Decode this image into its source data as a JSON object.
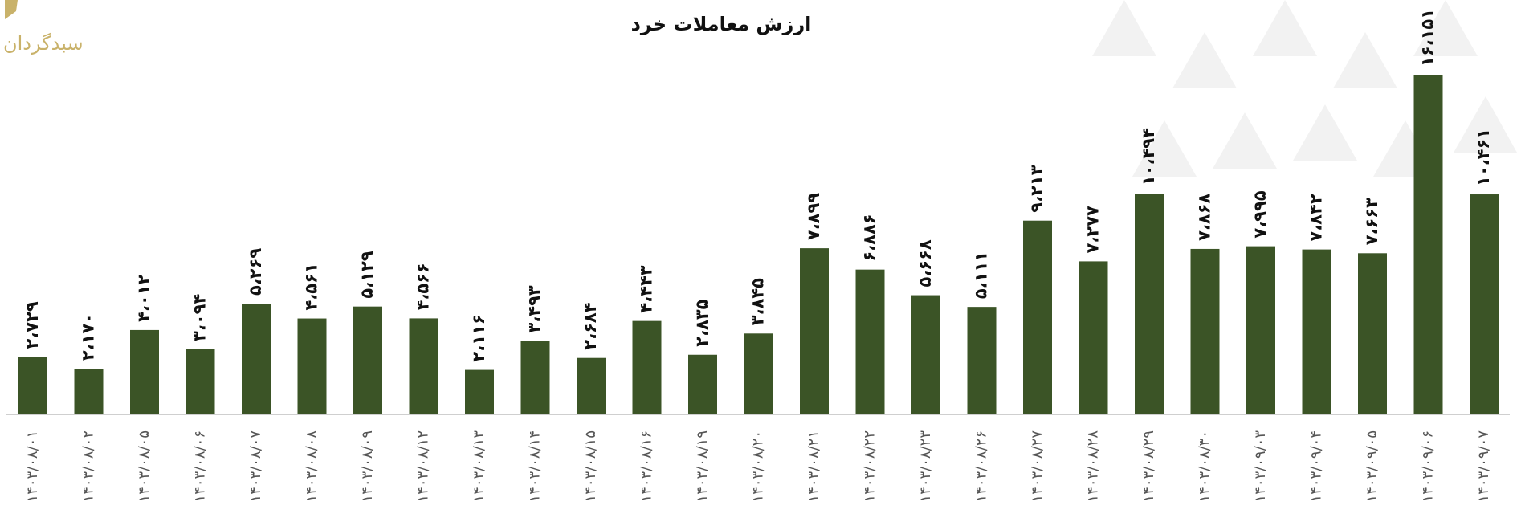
{
  "logo": {
    "text": "سبدگردان"
  },
  "chart_data": {
    "type": "bar",
    "title": "ارزش معاملات خرد",
    "color": "#3b5426",
    "categories": [
      "۱۴۰۳/۰۸/۰۱",
      "۱۴۰۳/۰۸/۰۲",
      "۱۴۰۳/۰۸/۰۵",
      "۱۴۰۳/۰۸/۰۶",
      "۱۴۰۳/۰۸/۰۷",
      "۱۴۰۳/۰۸/۰۸",
      "۱۴۰۳/۰۸/۰۹",
      "۱۴۰۳/۰۸/۱۲",
      "۱۴۰۳/۰۸/۱۳",
      "۱۴۰۳/۰۸/۱۴",
      "۱۴۰۳/۰۸/۱۵",
      "۱۴۰۳/۰۸/۱۶",
      "۱۴۰۳/۰۸/۱۹",
      "۱۴۰۳/۰۸/۲۰",
      "۱۴۰۳/۰۸/۲۱",
      "۱۴۰۳/۰۸/۲۲",
      "۱۴۰۳/۰۸/۲۳",
      "۱۴۰۳/۰۸/۲۶",
      "۱۴۰۳/۰۸/۲۷",
      "۱۴۰۳/۰۸/۲۸",
      "۱۴۰۳/۰۸/۲۹",
      "۱۴۰۳/۰۸/۳۰",
      "۱۴۰۳/۰۹/۰۳",
      "۱۴۰۳/۰۹/۰۴",
      "۱۴۰۳/۰۹/۰۵",
      "۱۴۰۳/۰۹/۰۶",
      "۱۴۰۳/۰۹/۰۷"
    ],
    "values": [
      2729,
      2170,
      4012,
      3094,
      5269,
      4561,
      5129,
      4566,
      2116,
      3493,
      2684,
      4443,
      2835,
      3845,
      7899,
      6886,
      5668,
      5111,
      9213,
      7277,
      10494,
      7868,
      7995,
      7842,
      7663,
      16151,
      10461
    ],
    "value_labels": [
      "۲،۷۲۹",
      "۲،۱۷۰",
      "۴،۰۱۲",
      "۳،۰۹۴",
      "۵،۲۶۹",
      "۴،۵۶۱",
      "۵،۱۲۹",
      "۴،۵۶۶",
      "۲،۱۱۶",
      "۳،۴۹۳",
      "۲،۶۸۴",
      "۴،۴۴۳",
      "۲،۸۳۵",
      "۳،۸۴۵",
      "۷،۸۹۹",
      "۶،۸۸۶",
      "۵،۶۶۸",
      "۵،۱۱۱",
      "۹،۲۱۳",
      "۷،۲۷۷",
      "۱۰،۴۹۴",
      "۷،۸۶۸",
      "۷،۹۹۵",
      "۷،۸۴۲",
      "۷،۶۶۳",
      "۱۶،۱۵۱",
      "۱۰،۴۶۱"
    ]
  }
}
